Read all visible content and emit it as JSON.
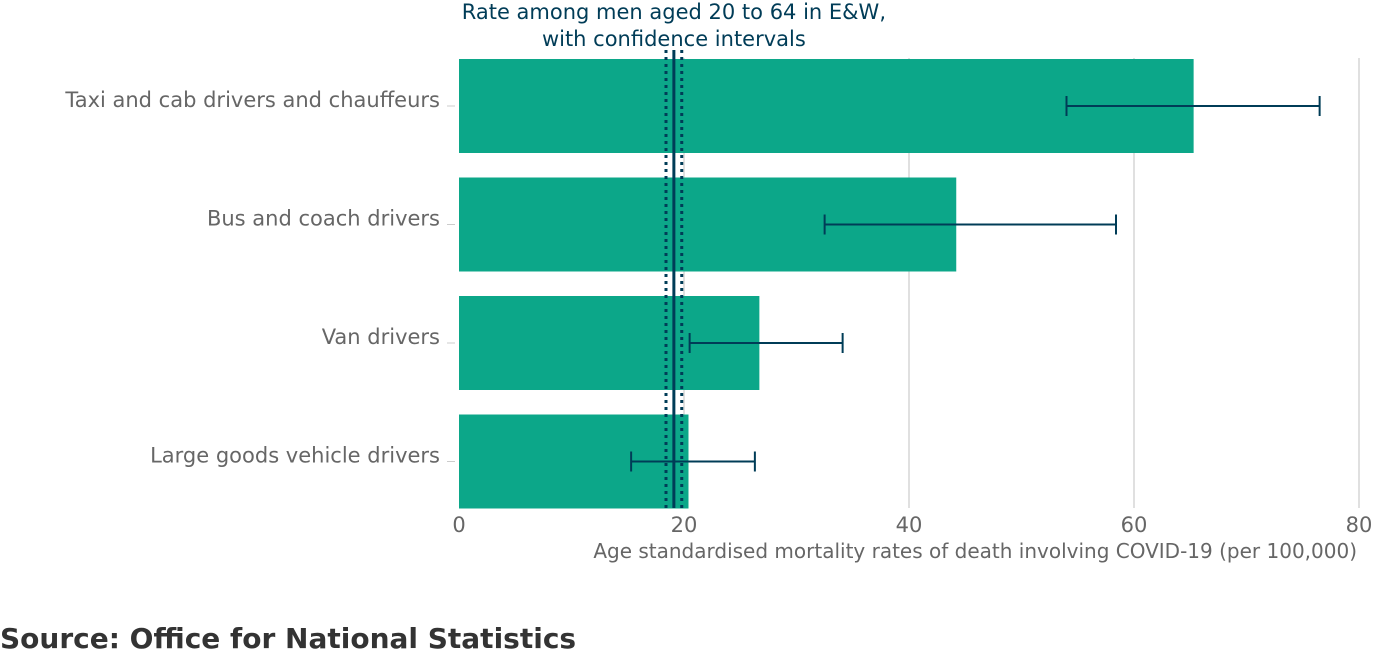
{
  "chart_data": {
    "type": "bar",
    "orientation": "horizontal",
    "categories": [
      "Taxi and cab drivers and chauffeurs",
      "Bus and coach drivers",
      "Van drivers",
      "Large goods vehicle drivers"
    ],
    "values": [
      65.3,
      44.2,
      26.7,
      20.4
    ],
    "ci_lower": [
      54.0,
      32.5,
      20.5,
      15.3
    ],
    "ci_upper": [
      76.5,
      58.4,
      34.1,
      26.3
    ],
    "reference": {
      "label_lines": [
        "Rate among men aged 20 to 64 in E&W,",
        "with confidence intervals"
      ],
      "value": 19.1,
      "ci_lower": 18.4,
      "ci_upper": 19.8,
      "color": "#003c57"
    },
    "xlim": [
      0,
      80
    ],
    "xticks": [
      0,
      20,
      40,
      60,
      80
    ],
    "xlabel": "Age standardised mortality rates of death involving COVID-19 (per 100,000)",
    "grid": true,
    "bar_color": "#0ca789",
    "errorbar_color": "#003c57"
  },
  "source": "Source: Office for National Statistics"
}
